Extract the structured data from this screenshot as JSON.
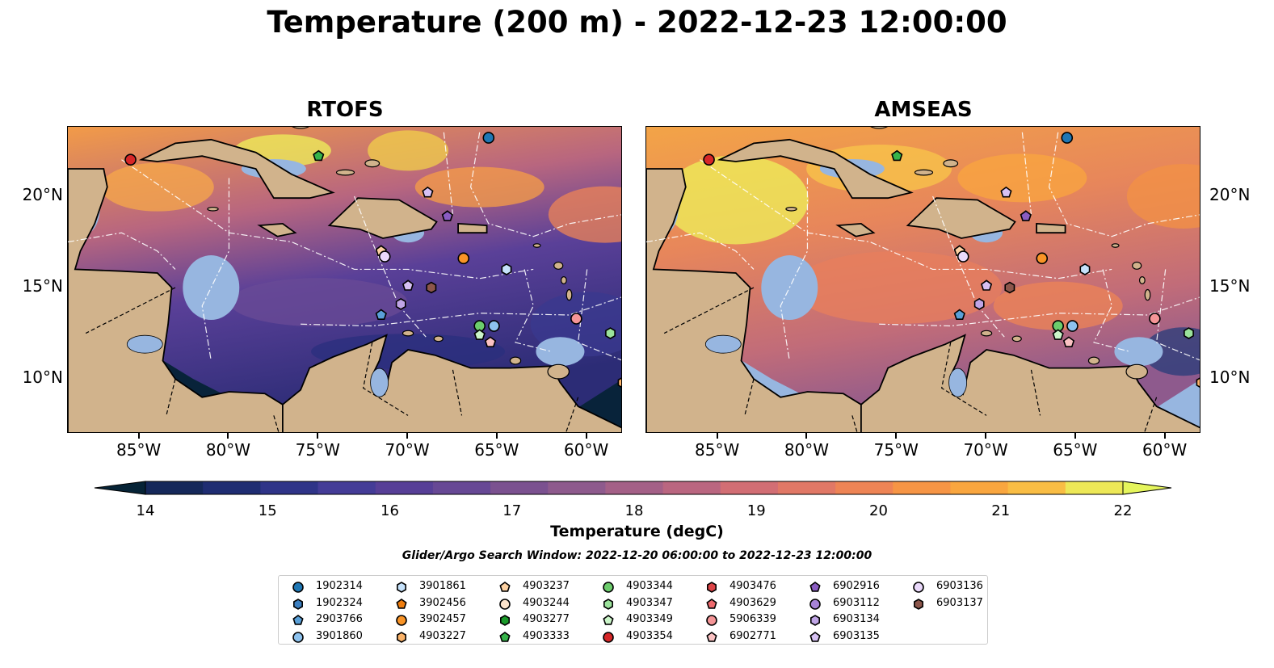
{
  "title": "Temperature (200 m) - 2022-12-23 12:00:00",
  "panels": [
    {
      "id": "rtofs",
      "title": "RTOFS",
      "style": "cool"
    },
    {
      "id": "amseas",
      "title": "AMSEAS",
      "style": "warm"
    }
  ],
  "lon_ticks": [
    "85°W",
    "80°W",
    "75°W",
    "70°W",
    "65°W",
    "60°W"
  ],
  "lat_ticks": [
    "20°N",
    "15°N",
    "10°N"
  ],
  "colorbar": {
    "ticks": [
      "14",
      "15",
      "16",
      "17",
      "18",
      "19",
      "20",
      "21",
      "22"
    ],
    "label": "Temperature (degC)",
    "colors": [
      "#062336",
      "#15285a",
      "#1f2d72",
      "#2f3488",
      "#443c97",
      "#573f97",
      "#674895",
      "#7b5190",
      "#8e5a8d",
      "#a46087",
      "#ba6680",
      "#d26e74",
      "#e17866",
      "#ee8455",
      "#f69545",
      "#f9a63f",
      "#f9bd44",
      "#ede857",
      "#e5f55c"
    ]
  },
  "search_window": "Glider/Argo Search Window: 2022-12-20 06:00:00 to 2022-12-23 12:00:00",
  "legend": [
    {
      "label": "1902314",
      "marker": "circle",
      "color": "#1f77b4"
    },
    {
      "label": "1902324",
      "marker": "hexagon",
      "color": "#3c7fc0"
    },
    {
      "label": "2903766",
      "marker": "pentagon",
      "color": "#5aa0d8"
    },
    {
      "label": "3901860",
      "marker": "circle",
      "color": "#8dc2ee"
    },
    {
      "label": "3901861",
      "marker": "hexagon",
      "color": "#c6e2fb"
    },
    {
      "label": "3902456",
      "marker": "pentagon",
      "color": "#ef7d0e"
    },
    {
      "label": "3902457",
      "marker": "circle",
      "color": "#f99427"
    },
    {
      "label": "4903227",
      "marker": "hexagon",
      "color": "#fbb369"
    },
    {
      "label": "4903237",
      "marker": "pentagon",
      "color": "#fdd1a2"
    },
    {
      "label": "4903244",
      "marker": "circle",
      "color": "#fde4cc"
    },
    {
      "label": "4903277",
      "marker": "hexagon",
      "color": "#1a9a2a"
    },
    {
      "label": "4903333",
      "marker": "pentagon",
      "color": "#36b34a"
    },
    {
      "label": "4903344",
      "marker": "circle",
      "color": "#6ccc6c"
    },
    {
      "label": "4903347",
      "marker": "hexagon",
      "color": "#9be29b"
    },
    {
      "label": "4903349",
      "marker": "pentagon",
      "color": "#cbf5c9"
    },
    {
      "label": "4903354",
      "marker": "circle",
      "color": "#d62728"
    },
    {
      "label": "4903476",
      "marker": "hexagon",
      "color": "#dd4447"
    },
    {
      "label": "4903629",
      "marker": "pentagon",
      "color": "#ee6a6e"
    },
    {
      "label": "5906339",
      "marker": "circle",
      "color": "#f59597"
    },
    {
      "label": "6902771",
      "marker": "pentagon",
      "color": "#fbc2c3"
    },
    {
      "label": "6902916",
      "marker": "pentagon",
      "color": "#8a5cc2"
    },
    {
      "label": "6903112",
      "marker": "circle",
      "color": "#a683d6"
    },
    {
      "label": "6903134",
      "marker": "hexagon",
      "color": "#c0a5e6"
    },
    {
      "label": "6903135",
      "marker": "pentagon",
      "color": "#d6c1f3"
    },
    {
      "label": "6903136",
      "marker": "circle",
      "color": "#ead9fb"
    },
    {
      "label": "6903137",
      "marker": "hexagon",
      "color": "#8c564b"
    }
  ],
  "floats_on_map": [
    {
      "label": "4903354",
      "lon": -85.5,
      "lat": 22.0
    },
    {
      "label": "4903333",
      "lon": -75.0,
      "lat": 22.2
    },
    {
      "label": "1902314",
      "lon": -65.5,
      "lat": 23.2
    },
    {
      "label": "6903135",
      "lon": -68.9,
      "lat": 20.2
    },
    {
      "label": "6902916",
      "lon": -67.8,
      "lat": 18.9
    },
    {
      "label": "4903237",
      "lon": -71.5,
      "lat": 17.0
    },
    {
      "label": "6903136",
      "lon": -71.3,
      "lat": 16.7
    },
    {
      "label": "3902457",
      "lon": -66.9,
      "lat": 16.6
    },
    {
      "label": "3901861",
      "lon": -64.5,
      "lat": 16.0
    },
    {
      "label": "6903135",
      "lon": -70.0,
      "lat": 15.1
    },
    {
      "label": "6903137",
      "lon": -68.7,
      "lat": 15.0
    },
    {
      "label": "6903134",
      "lon": -70.4,
      "lat": 14.1
    },
    {
      "label": "2903766",
      "lon": -71.5,
      "lat": 13.5
    },
    {
      "label": "4903344",
      "lon": -66.0,
      "lat": 12.9
    },
    {
      "label": "3901860",
      "lon": -65.2,
      "lat": 12.9
    },
    {
      "label": "4903349",
      "lon": -66.0,
      "lat": 12.4
    },
    {
      "label": "6902771",
      "lon": -65.4,
      "lat": 12.0
    },
    {
      "label": "5906339",
      "lon": -60.6,
      "lat": 13.3
    },
    {
      "label": "4903347",
      "lon": -58.7,
      "lat": 12.5
    },
    {
      "label": "4903227",
      "lon": -58.0,
      "lat": 9.8
    }
  ]
}
